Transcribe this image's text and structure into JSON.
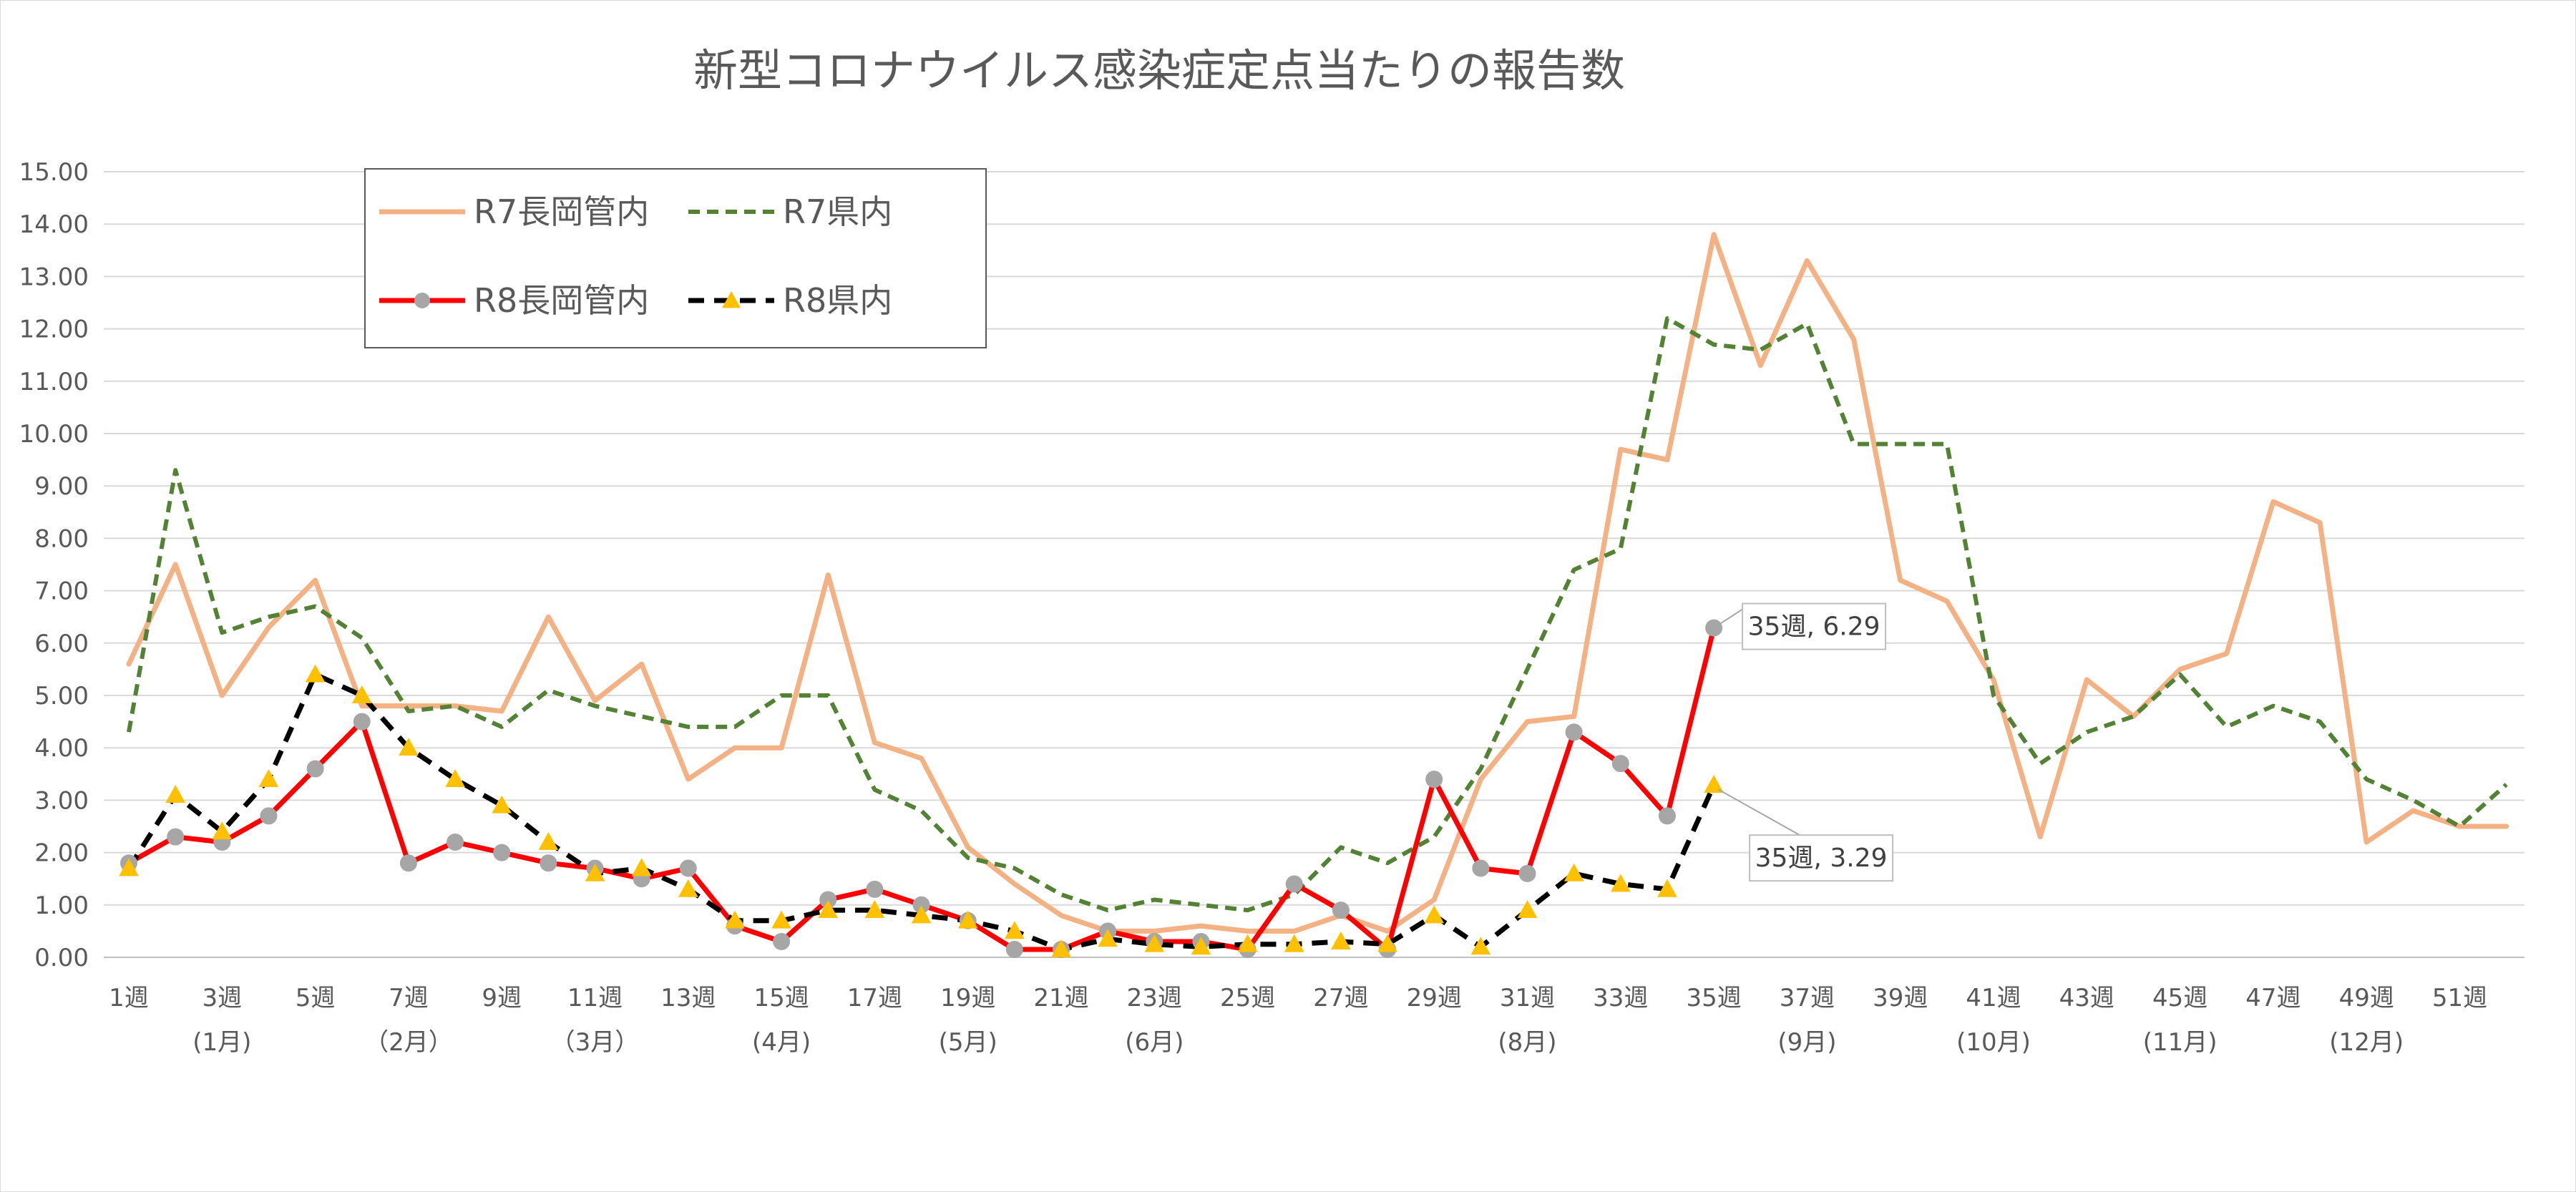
{
  "chart_data": {
    "type": "line",
    "title": "新型コロナウイルス感染症定点当たりの報告数",
    "ylim": [
      0,
      15
    ],
    "y_ticks": [
      "0.00",
      "1.00",
      "2.00",
      "3.00",
      "4.00",
      "5.00",
      "6.00",
      "7.00",
      "8.00",
      "9.00",
      "10.00",
      "11.00",
      "12.00",
      "13.00",
      "14.00",
      "15.00"
    ],
    "x_tick_labels": [
      "1週",
      "3週",
      "5週",
      "7週",
      "9週",
      "11週",
      "13週",
      "15週",
      "17週",
      "19週",
      "21週",
      "23週",
      "25週",
      "27週",
      "29週",
      "31週",
      "33週",
      "35週",
      "37週",
      "39週",
      "41週",
      "43週",
      "45週",
      "47週",
      "49週",
      "51週"
    ],
    "month_labels": [
      {
        "label": "(1月)",
        "week": 3
      },
      {
        "label": "（2月）",
        "week": 7
      },
      {
        "label": "（3月）",
        "week": 11
      },
      {
        "label": "(4月)",
        "week": 15
      },
      {
        "label": "(5月)",
        "week": 19
      },
      {
        "label": "(6月)",
        "week": 23
      },
      {
        "label": "(8月)",
        "week": 31
      },
      {
        "label": "(9月)",
        "week": 37
      },
      {
        "label": "(10月)",
        "week": 41
      },
      {
        "label": "(11月)",
        "week": 45
      },
      {
        "label": "(12月)",
        "week": 49
      }
    ],
    "grid": true,
    "legend_position": "top-left",
    "series": [
      {
        "name": "R7長岡管内",
        "style": "solid",
        "color": "#f4b183",
        "marker": "none",
        "values": [
          5.6,
          7.5,
          5.0,
          6.3,
          7.2,
          4.8,
          4.8,
          4.8,
          4.7,
          6.5,
          4.9,
          5.6,
          3.4,
          4.0,
          4.0,
          7.3,
          4.1,
          3.8,
          2.1,
          1.4,
          0.8,
          0.5,
          0.5,
          0.6,
          0.5,
          0.5,
          0.8,
          0.5,
          1.1,
          3.4,
          4.5,
          4.6,
          9.7,
          9.5,
          13.8,
          11.3,
          13.3,
          11.8,
          7.2,
          6.8,
          5.3,
          2.3,
          5.3,
          4.6,
          5.5,
          5.8,
          8.7,
          8.3,
          2.2,
          2.8,
          2.5,
          2.5
        ]
      },
      {
        "name": "R7県内",
        "style": "dashed",
        "color": "#548235",
        "marker": "none",
        "values": [
          4.3,
          9.3,
          6.2,
          6.5,
          6.7,
          6.1,
          4.7,
          4.8,
          4.4,
          5.1,
          4.8,
          4.6,
          4.4,
          4.4,
          5.0,
          5.0,
          3.2,
          2.8,
          1.9,
          1.7,
          1.2,
          0.9,
          1.1,
          1.0,
          0.9,
          1.2,
          2.1,
          1.8,
          2.3,
          3.6,
          5.5,
          7.4,
          7.8,
          12.2,
          11.7,
          11.6,
          12.1,
          9.8,
          9.8,
          9.8,
          5.0,
          3.7,
          4.3,
          4.6,
          5.4,
          4.4,
          4.8,
          4.5,
          3.4,
          3.0,
          2.5,
          3.3
        ]
      },
      {
        "name": "R8長岡管内",
        "style": "solid",
        "color": "#ff0000",
        "marker": "circle",
        "values": [
          1.8,
          2.3,
          2.2,
          2.7,
          3.6,
          4.5,
          1.8,
          2.2,
          2.0,
          1.8,
          1.7,
          1.5,
          1.7,
          0.6,
          0.3,
          1.1,
          1.3,
          1.0,
          0.7,
          0.15,
          0.15,
          0.5,
          0.3,
          0.3,
          0.15,
          1.4,
          0.9,
          0.15,
          3.4,
          1.7,
          1.6,
          4.3,
          3.7,
          2.7,
          6.29
        ]
      },
      {
        "name": "R8県内",
        "style": "dashed",
        "color": "#000000",
        "marker": "triangle",
        "values": [
          1.7,
          3.1,
          2.4,
          3.4,
          5.4,
          5.0,
          4.0,
          3.4,
          2.9,
          2.2,
          1.6,
          1.7,
          1.3,
          0.7,
          0.7,
          0.9,
          0.9,
          0.8,
          0.7,
          0.5,
          0.15,
          0.35,
          0.25,
          0.2,
          0.25,
          0.25,
          0.3,
          0.25,
          0.8,
          0.2,
          0.9,
          1.6,
          1.4,
          1.3,
          3.29
        ]
      }
    ],
    "annotations": [
      {
        "series": "R8長岡管内",
        "text": "35週, 6.29"
      },
      {
        "series": "R8県内",
        "text": "35週, 3.29"
      }
    ]
  }
}
